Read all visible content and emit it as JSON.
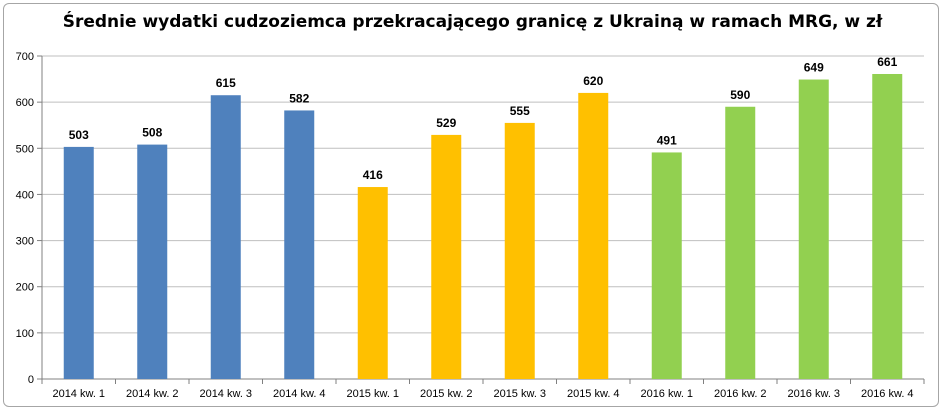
{
  "chart_data": {
    "type": "bar",
    "title": "Średnie wydatki cudzoziemca przekracającego granicę z Ukrainą w ramach MRG, w zł",
    "xlabel": "",
    "ylabel": "",
    "ylim": [
      0,
      700
    ],
    "yticks": [
      0,
      100,
      200,
      300,
      400,
      500,
      600,
      700
    ],
    "grid": true,
    "legend": "none",
    "categories": [
      "2014 kw. 1",
      "2014 kw. 2",
      "2014 kw. 3",
      "2014 kw. 4",
      "2015 kw. 1",
      "2015 kw. 2",
      "2015 kw. 3",
      "2015 kw. 4",
      "2016 kw. 1",
      "2016 kw. 2",
      "2016 kw. 3",
      "2016 kw. 4"
    ],
    "values": [
      503,
      508,
      615,
      582,
      416,
      529,
      555,
      620,
      491,
      590,
      649,
      661
    ],
    "bar_colors": [
      "#4f81bd",
      "#4f81bd",
      "#4f81bd",
      "#4f81bd",
      "#ffc000",
      "#ffc000",
      "#ffc000",
      "#ffc000",
      "#92d050",
      "#92d050",
      "#92d050",
      "#92d050"
    ],
    "gridline_color": "#bfbfbf",
    "axis_color": "#808080"
  }
}
